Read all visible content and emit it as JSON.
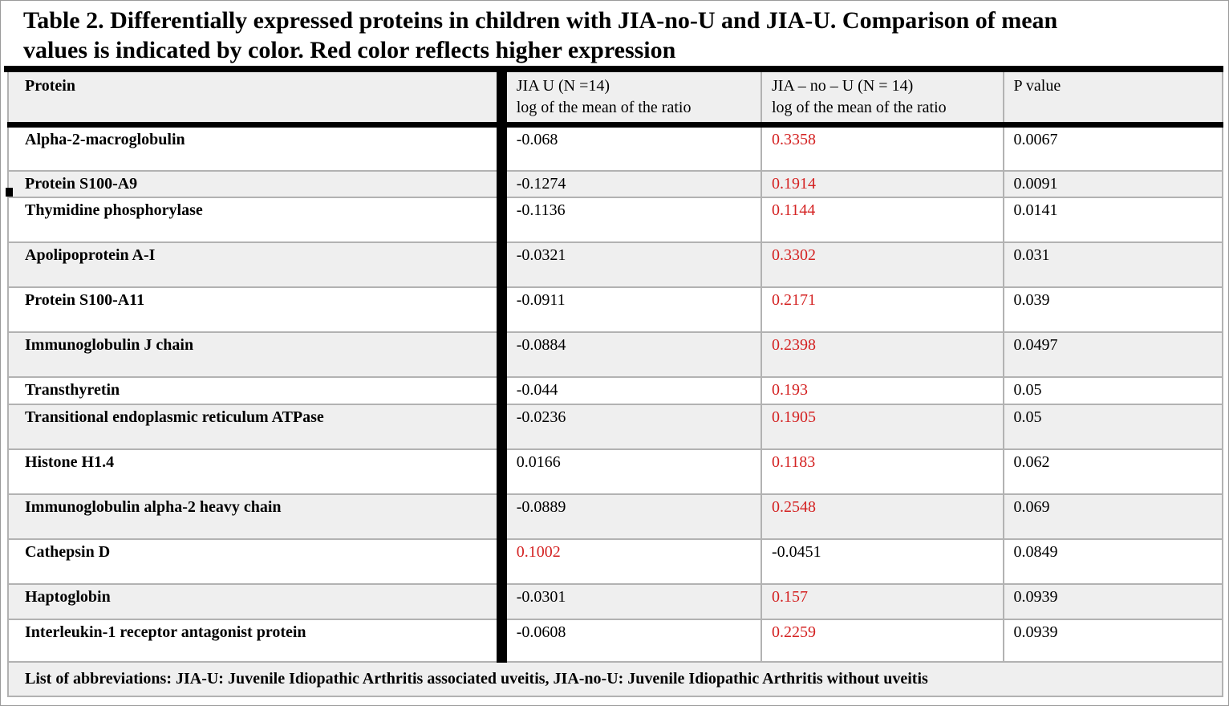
{
  "title": {
    "line1": "Table 2. Differentially expressed proteins in children with JIA-no-U and JIA-U. Comparison of mean",
    "line2": "values is indicated by color. Red color reflects higher expression"
  },
  "colors": {
    "higher_expression_red": "#d42222",
    "row_stripe": "#efefef",
    "grid_line": "#b2b2b2",
    "heavy_rule": "#000000"
  },
  "table": {
    "headers": {
      "protein": "Protein",
      "jia_u_line1": "JIA U (N =14)",
      "jia_u_line2": "log of the mean of the ratio",
      "jia_no_u_line1": "JIA – no – U (N = 14)",
      "jia_no_u_line2": "log of the mean of the ratio",
      "p_value": "P value"
    },
    "rows": [
      {
        "protein": "Alpha-2-macroglobulin",
        "jia_u": "-0.068",
        "jia_u_class": "",
        "jia_no_u": "0.3358",
        "jia_no_u_class": "red",
        "p": "0.0067"
      },
      {
        "protein": "Protein S100-A9",
        "jia_u": "-0.1274",
        "jia_u_class": "",
        "jia_no_u": "0.1914",
        "jia_no_u_class": "red",
        "p": "0.0091"
      },
      {
        "protein": "Thymidine phosphorylase",
        "jia_u": "-0.1136",
        "jia_u_class": "",
        "jia_no_u": "0.1144",
        "jia_no_u_class": "red",
        "p": "0.0141"
      },
      {
        "protein": "Apolipoprotein A-I",
        "jia_u": "-0.0321",
        "jia_u_class": "",
        "jia_no_u": "0.3302",
        "jia_no_u_class": "red",
        "p": "0.031"
      },
      {
        "protein": "Protein S100-A11",
        "jia_u": "-0.0911",
        "jia_u_class": "",
        "jia_no_u": "0.2171",
        "jia_no_u_class": "red",
        "p": "0.039"
      },
      {
        "protein": "Immunoglobulin J chain",
        "jia_u": "-0.0884",
        "jia_u_class": "",
        "jia_no_u": "0.2398",
        "jia_no_u_class": "red",
        "p": "0.0497"
      },
      {
        "protein": "Transthyretin",
        "jia_u": "-0.044",
        "jia_u_class": "",
        "jia_no_u": "0.193",
        "jia_no_u_class": "red",
        "p": "0.05"
      },
      {
        "protein": "Transitional endoplasmic reticulum ATPase",
        "jia_u": "-0.0236",
        "jia_u_class": "",
        "jia_no_u": "0.1905",
        "jia_no_u_class": "red",
        "p": "0.05"
      },
      {
        "protein": "Histone H1.4",
        "jia_u": "0.0166",
        "jia_u_class": "",
        "jia_no_u": "0.1183",
        "jia_no_u_class": "red",
        "p": "0.062"
      },
      {
        "protein": "Immunoglobulin alpha-2 heavy chain",
        "jia_u": "-0.0889",
        "jia_u_class": "",
        "jia_no_u": "0.2548",
        "jia_no_u_class": "red",
        "p": "0.069"
      },
      {
        "protein": "Cathepsin D",
        "jia_u": "0.1002",
        "jia_u_class": "red",
        "jia_no_u": "-0.0451",
        "jia_no_u_class": "",
        "p": "0.0849"
      },
      {
        "protein": "Haptoglobin",
        "jia_u": "-0.0301",
        "jia_u_class": "",
        "jia_no_u": "0.157",
        "jia_no_u_class": "red",
        "p": "0.0939"
      },
      {
        "protein": "Interleukin-1 receptor antagonist protein",
        "jia_u": "-0.0608",
        "jia_u_class": "",
        "jia_no_u": "0.2259",
        "jia_no_u_class": "red",
        "p": "0.0939"
      }
    ],
    "footer": "List of abbreviations: JIA-U: Juvenile Idiopathic Arthritis associated uveitis, JIA-no-U: Juvenile Idiopathic Arthritis without uveitis"
  }
}
